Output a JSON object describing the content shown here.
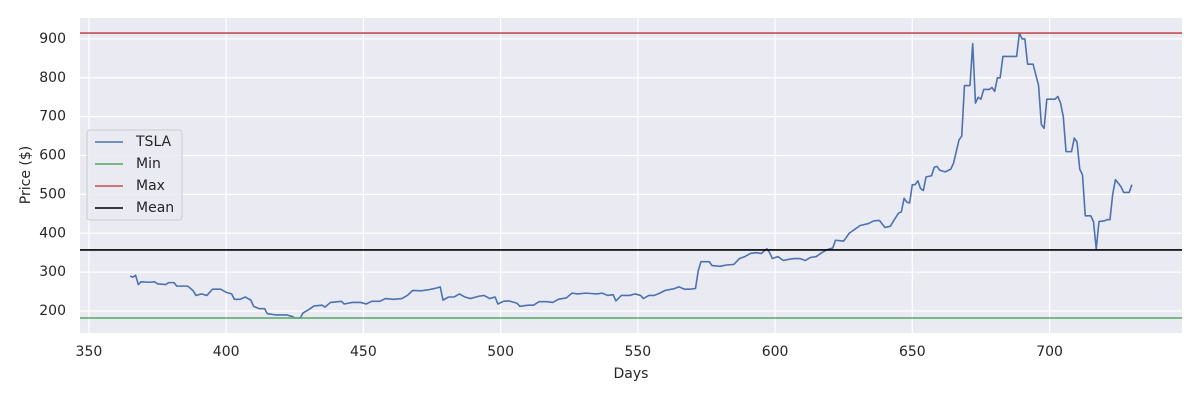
{
  "chart_data": {
    "type": "line",
    "xlabel": "Days",
    "ylabel": "Price ($)",
    "xlim": [
      346.75,
      748.25
    ],
    "ylim": [
      143.4,
      953.8
    ],
    "xticks": [
      350,
      400,
      450,
      500,
      550,
      600,
      650,
      700
    ],
    "yticks": [
      200,
      300,
      400,
      500,
      600,
      700,
      800,
      900
    ],
    "grid": true,
    "legend": "center left",
    "x": [
      365,
      366,
      367,
      368,
      369,
      372,
      374,
      375,
      378,
      379,
      381,
      382,
      386,
      388,
      389,
      391,
      393,
      395,
      398,
      400,
      402,
      403,
      405,
      407,
      409,
      410,
      412,
      414,
      415,
      418,
      422,
      424,
      425,
      427,
      428,
      430,
      432,
      435,
      436,
      438,
      442,
      443,
      446,
      449,
      451,
      453,
      456,
      458,
      461,
      464,
      466,
      468,
      471,
      474,
      476,
      478,
      479,
      481,
      483,
      485,
      487,
      489,
      492,
      494,
      496,
      498,
      499,
      501,
      503,
      506,
      507,
      510,
      512,
      514,
      517,
      519,
      521,
      524,
      526,
      528,
      531,
      533,
      535,
      537,
      539,
      541,
      542,
      544,
      547,
      549,
      551,
      552,
      554,
      556,
      558,
      560,
      563,
      565,
      567,
      569,
      571,
      572,
      573,
      576,
      577,
      580,
      582,
      585,
      587,
      589,
      591,
      593,
      595,
      597,
      598,
      599,
      601,
      603,
      605,
      607,
      609,
      611,
      613,
      615,
      617,
      619,
      621,
      622,
      625,
      627,
      629,
      631,
      634,
      636,
      638,
      640,
      642,
      643,
      645,
      646,
      647,
      648,
      649,
      650,
      651,
      652,
      653,
      654,
      655,
      657,
      658,
      659,
      660,
      662,
      664,
      665,
      667,
      668,
      669,
      671,
      672,
      673,
      674,
      675,
      676,
      678,
      679,
      680,
      681,
      682,
      683,
      686,
      688,
      689,
      690,
      691,
      692,
      694,
      696,
      697,
      698,
      699,
      702,
      703,
      704,
      705,
      706,
      708,
      709,
      710,
      711,
      712,
      713,
      715,
      716,
      717,
      718,
      720,
      721,
      722,
      723,
      724,
      726,
      727,
      729,
      730
    ],
    "series": [
      {
        "name": "TSLA",
        "color": "#4c72b0",
        "values": [
          290,
          287,
          292,
          268,
          275,
          274,
          275,
          270,
          268,
          273,
          273,
          264,
          264,
          252,
          240,
          244,
          240,
          256,
          256,
          248,
          244,
          230,
          230,
          236,
          228,
          212,
          206,
          206,
          193,
          190,
          190,
          186,
          182,
          182,
          195,
          203,
          213,
          215,
          210,
          222,
          225,
          218,
          222,
          222,
          218,
          225,
          225,
          232,
          230,
          232,
          240,
          253,
          252,
          255,
          258,
          262,
          228,
          236,
          236,
          244,
          236,
          232,
          238,
          240,
          232,
          236,
          218,
          225,
          226,
          220,
          212,
          215,
          215,
          224,
          224,
          222,
          230,
          234,
          246,
          244,
          246,
          245,
          244,
          246,
          240,
          242,
          226,
          240,
          240,
          244,
          240,
          232,
          240,
          240,
          246,
          253,
          257,
          262,
          256,
          256,
          258,
          304,
          327,
          327,
          317,
          315,
          318,
          320,
          335,
          340,
          348,
          350,
          348,
          360,
          350,
          335,
          340,
          330,
          333,
          335,
          335,
          330,
          338,
          340,
          350,
          358,
          362,
          382,
          380,
          400,
          410,
          420,
          425,
          432,
          433,
          415,
          418,
          430,
          452,
          455,
          490,
          480,
          478,
          525,
          525,
          535,
          515,
          510,
          545,
          548,
          570,
          572,
          562,
          558,
          565,
          580,
          640,
          650,
          780,
          780,
          888,
          735,
          750,
          745,
          770,
          770,
          775,
          765,
          800,
          800,
          855,
          855,
          855,
          915,
          900,
          900,
          835,
          835,
          780,
          680,
          670,
          745,
          745,
          752,
          735,
          700,
          610,
          610,
          645,
          635,
          565,
          550,
          445,
          445,
          430,
          360,
          430,
          432,
          435,
          435,
          500,
          538,
          520,
          505,
          505,
          525
        ]
      }
    ],
    "hlines": [
      {
        "name": "Min",
        "color": "#55a868",
        "value": 182
      },
      {
        "name": "Max",
        "color": "#c44e52",
        "value": 915
      },
      {
        "name": "Mean",
        "color": "#000000",
        "value": 357
      }
    ]
  }
}
